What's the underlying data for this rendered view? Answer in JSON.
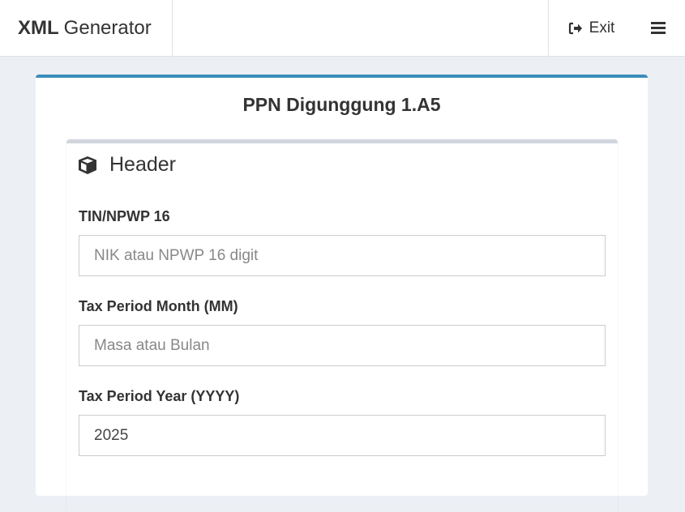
{
  "navbar": {
    "brand_bold": "XML",
    "brand_rest": "Generator",
    "exit_label": "Exit"
  },
  "page": {
    "title": "PPN Digunggung 1.A5"
  },
  "section": {
    "title": "Header",
    "fields": [
      {
        "label": "TIN/NPWP 16",
        "placeholder": "NIK atau NPWP 16 digit",
        "value": ""
      },
      {
        "label": "Tax Period Month (MM)",
        "placeholder": "Masa atau Bulan",
        "value": ""
      },
      {
        "label": "Tax Period Year (YYYY)",
        "placeholder": "",
        "value": "2025"
      }
    ]
  },
  "colors": {
    "accent": "#3c8dbc",
    "background": "#ecf0f5"
  }
}
